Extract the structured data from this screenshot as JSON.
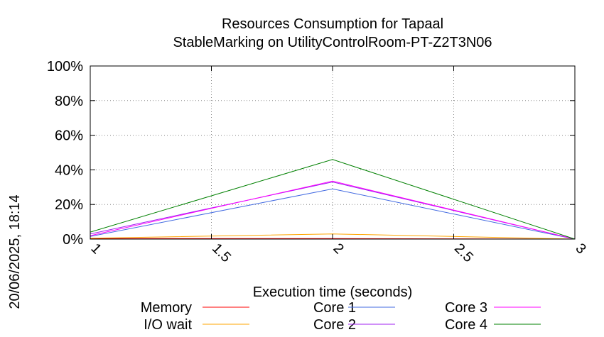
{
  "chart_data": {
    "type": "line",
    "title": "Resources Consumption for Tapaal",
    "subtitle": "StableMarking on UtilityControlRoom-PT-Z2T3N06",
    "xlabel": "Execution time (seconds)",
    "ylabel": "",
    "timestamp": "20/06/2025, 18:14",
    "xlim": [
      1,
      3
    ],
    "ylim": [
      0,
      100
    ],
    "x_ticks": [
      {
        "value": 1,
        "label": "1"
      },
      {
        "value": 1.5,
        "label": "1.5"
      },
      {
        "value": 2,
        "label": "2"
      },
      {
        "value": 2.5,
        "label": "2.5"
      },
      {
        "value": 3,
        "label": "3"
      }
    ],
    "y_ticks": [
      {
        "value": 0,
        "label": "0%"
      },
      {
        "value": 20,
        "label": "20%"
      },
      {
        "value": 40,
        "label": "40%"
      },
      {
        "value": 60,
        "label": "60%"
      },
      {
        "value": 80,
        "label": "80%"
      },
      {
        "value": 100,
        "label": "100%"
      }
    ],
    "grid": true,
    "legend_position": "bottom",
    "x": [
      1,
      2,
      3
    ],
    "series": [
      {
        "name": "Memory",
        "color": "#ff0000",
        "values": [
          0.3,
          0.3,
          0
        ]
      },
      {
        "name": "I/O wait",
        "color": "#ffa500",
        "values": [
          0.5,
          3,
          0
        ]
      },
      {
        "name": "Core 1",
        "color": "#4169e1",
        "values": [
          1.5,
          29,
          0
        ]
      },
      {
        "name": "Core 2",
        "color": "#a020f0",
        "values": [
          3,
          33,
          0
        ]
      },
      {
        "name": "Core 3",
        "color": "#ff00ff",
        "values": [
          2,
          33.5,
          0
        ]
      },
      {
        "name": "Core 4",
        "color": "#008000",
        "values": [
          4,
          46,
          0
        ]
      }
    ]
  }
}
